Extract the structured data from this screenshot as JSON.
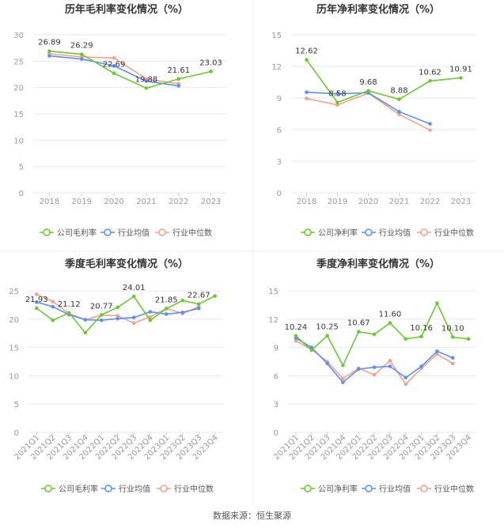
{
  "colors": {
    "company": "#6cc832",
    "avg": "#5b8ff9",
    "median": "#f4a287",
    "axis_text": "#999999",
    "grid": "#e8e8e8",
    "title": "#333333",
    "divider": "#eeeeee"
  },
  "footer": "数据来源：恒生聚源",
  "chart_data": [
    {
      "type": "line",
      "title": "历年毛利率变化情况（%）",
      "categories": [
        "2018",
        "2019",
        "2020",
        "2021",
        "2022",
        "2023"
      ],
      "ylim": [
        0,
        30
      ],
      "yticks": [
        0,
        5,
        10,
        15,
        20,
        25,
        30
      ],
      "grid": true,
      "legend": "bottom",
      "series": [
        {
          "name": "公司毛利率",
          "role": "company",
          "values": [
            26.89,
            26.29,
            22.69,
            19.88,
            21.61,
            23.03
          ],
          "labels": [
            "26.89",
            "26.29",
            "22.69",
            "19.88",
            "21.61",
            "23.03"
          ]
        },
        {
          "name": "行业均值",
          "role": "avg",
          "values": [
            26.0,
            25.4,
            24.1,
            21.2,
            20.3,
            null
          ]
        },
        {
          "name": "行业中位数",
          "role": "median",
          "values": [
            26.4,
            25.8,
            25.6,
            21.6,
            20.7,
            null
          ]
        }
      ]
    },
    {
      "type": "line",
      "title": "历年净利率变化情况（%）",
      "categories": [
        "2018",
        "2019",
        "2020",
        "2021",
        "2022",
        "2023"
      ],
      "ylim": [
        0,
        15
      ],
      "yticks": [
        0,
        3,
        6,
        9,
        12,
        15
      ],
      "grid": true,
      "legend": "bottom",
      "series": [
        {
          "name": "公司净利率",
          "role": "company",
          "values": [
            12.62,
            8.58,
            9.68,
            8.88,
            10.62,
            10.91
          ],
          "labels": [
            "12.62",
            "8.58",
            "9.68",
            "8.88",
            "10.62",
            "10.91"
          ]
        },
        {
          "name": "行业均值",
          "role": "avg",
          "values": [
            9.55,
            9.4,
            9.5,
            7.7,
            6.55,
            null
          ]
        },
        {
          "name": "行业中位数",
          "role": "median",
          "values": [
            8.95,
            8.35,
            9.45,
            7.45,
            5.95,
            null
          ]
        }
      ]
    },
    {
      "type": "line",
      "title": "季度毛利率变化情况（%）",
      "categories": [
        "2021Q1",
        "2021Q2",
        "2021Q3",
        "2021Q4",
        "2022Q1",
        "2022Q2",
        "2022Q3",
        "2022Q4",
        "2023Q1",
        "2023Q2",
        "2023Q3",
        "2023Q4"
      ],
      "ylim": [
        0,
        25
      ],
      "yticks": [
        0,
        5,
        10,
        15,
        20,
        25
      ],
      "grid": true,
      "legend": "bottom",
      "series": [
        {
          "name": "公司毛利率",
          "role": "company",
          "values": [
            21.93,
            19.8,
            21.12,
            17.6,
            20.77,
            22.1,
            24.01,
            19.8,
            21.85,
            23.3,
            22.67,
            24.1
          ],
          "labels": [
            "21.93",
            "",
            "21.12",
            "",
            "20.77",
            "",
            "24.01",
            "",
            "21.85",
            "",
            "22.67",
            ""
          ]
        },
        {
          "name": "行业均值",
          "role": "avg",
          "values": [
            23.0,
            22.2,
            20.8,
            19.9,
            19.8,
            20.1,
            20.3,
            21.3,
            20.9,
            21.2,
            21.9,
            null
          ]
        },
        {
          "name": "行业中位数",
          "role": "median",
          "values": [
            24.4,
            23.1,
            21.0,
            19.9,
            20.7,
            20.6,
            19.3,
            20.4,
            21.9,
            21.0,
            22.2,
            null
          ]
        }
      ]
    },
    {
      "type": "line",
      "title": "季度净利率变化情况（%）",
      "categories": [
        "2021Q1",
        "2021Q2",
        "2021Q3",
        "2021Q4",
        "2022Q1",
        "2022Q2",
        "2022Q3",
        "2022Q4",
        "2023Q1",
        "2023Q2",
        "2023Q3",
        "2023Q4"
      ],
      "ylim": [
        0,
        15
      ],
      "yticks": [
        0,
        3,
        6,
        9,
        12,
        15
      ],
      "grid": true,
      "legend": "bottom",
      "series": [
        {
          "name": "公司净利率",
          "role": "company",
          "values": [
            10.24,
            8.7,
            10.25,
            7.1,
            10.67,
            10.4,
            11.6,
            9.9,
            10.16,
            13.7,
            10.1,
            9.9
          ],
          "labels": [
            "10.24",
            "",
            "10.25",
            "",
            "10.67",
            "",
            "11.60",
            "",
            "10.16",
            "",
            "10.10",
            ""
          ]
        },
        {
          "name": "行业均值",
          "role": "avg",
          "values": [
            10.0,
            9.0,
            7.3,
            5.3,
            6.7,
            6.9,
            7.0,
            5.8,
            7.0,
            8.6,
            7.9,
            null
          ]
        },
        {
          "name": "行业中位数",
          "role": "median",
          "values": [
            9.7,
            8.8,
            7.5,
            5.7,
            6.8,
            6.1,
            7.6,
            5.1,
            6.8,
            8.3,
            7.3,
            null
          ]
        }
      ]
    }
  ]
}
